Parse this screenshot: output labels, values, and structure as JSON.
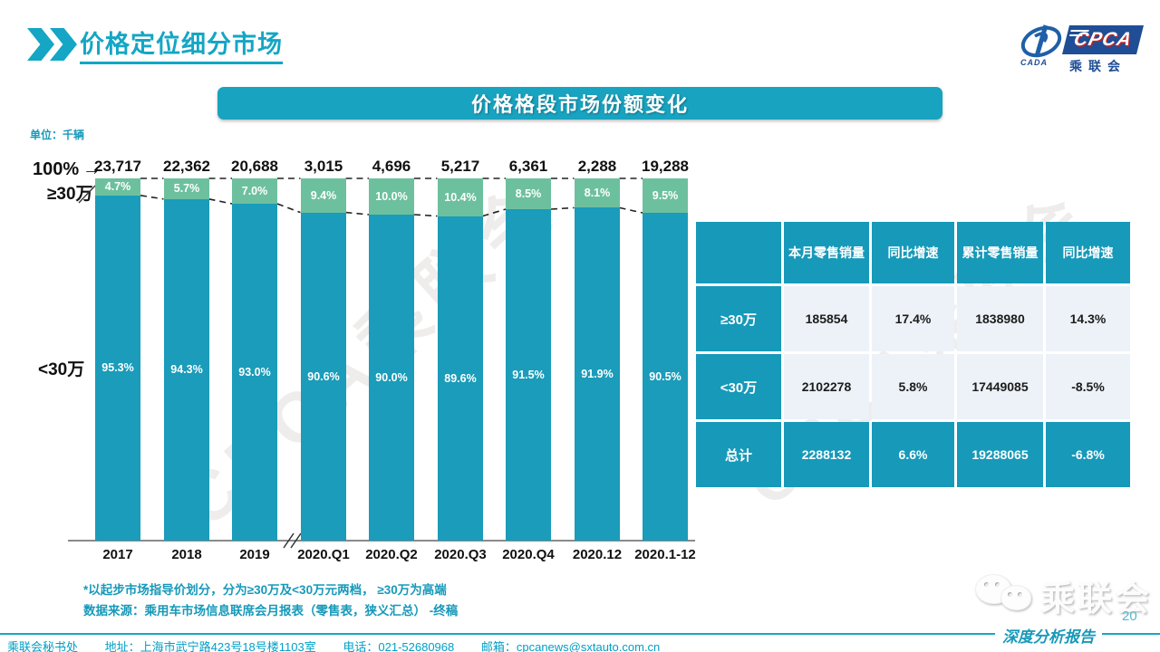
{
  "page": {
    "title": "价格定位细分市场",
    "page_number": "20",
    "report_type": "深度分析报告",
    "watermark": "CPCA乘联会"
  },
  "logo": {
    "cpca": "CPCA",
    "cada": "CADA",
    "org": "乘联会"
  },
  "banner": {
    "title": "价格格段市场份额变化"
  },
  "chart_data": {
    "type": "bar",
    "stacked": true,
    "title": "价格格段市场份额变化",
    "unit": "单位：千辆",
    "categories": [
      "2017",
      "2018",
      "2019",
      "2020.Q1",
      "2020.Q2",
      "2020.Q3",
      "2020.Q4",
      "2020.12",
      "2020.1-12"
    ],
    "totals": [
      "23,717",
      "22,362",
      "20,688",
      "3,015",
      "4,696",
      "5,217",
      "6,361",
      "2,288",
      "19,288"
    ],
    "series": [
      {
        "name": "≥30万",
        "values": [
          4.7,
          5.7,
          7.0,
          9.4,
          10.0,
          10.4,
          8.5,
          8.1,
          9.5
        ]
      },
      {
        "name": "<30万",
        "values": [
          95.3,
          94.3,
          93.0,
          90.6,
          90.0,
          89.6,
          91.5,
          91.9,
          90.5
        ]
      }
    ],
    "labels_high": [
      "4.7%",
      "5.7%",
      "7.0%",
      "9.4%",
      "10.0%",
      "10.4%",
      "8.5%",
      "8.1%",
      "9.5%"
    ],
    "labels_low": [
      "95.3%",
      "94.3%",
      "93.0%",
      "90.6%",
      "90.0%",
      "89.6%",
      "91.5%",
      "91.9%",
      "90.5%"
    ],
    "axis": {
      "hundred": "100%",
      "high_label": "≥30万",
      "low_label": "<30万",
      "ylim": [
        0,
        100
      ],
      "grid": false,
      "axis_break_after": "2019"
    },
    "colors": {
      "high": "#6dc09e",
      "low": "#1a9cba"
    }
  },
  "table": {
    "headers": [
      "",
      "本月零售销量",
      "同比增速",
      "累计零售销量",
      "同比增速"
    ],
    "rows": [
      {
        "label": "≥30万",
        "cells": [
          "185854",
          "17.4%",
          "1838980",
          "14.3%"
        ]
      },
      {
        "label": "<30万",
        "cells": [
          "2102278",
          "5.8%",
          "17449085",
          "-8.5%"
        ]
      },
      {
        "label": "总计",
        "cells": [
          "2288132",
          "6.6%",
          "19288065",
          "-6.8%"
        ]
      }
    ]
  },
  "notes": {
    "line1": "*以起步市场指导价划分，分为≥30万及<30万元两档， ≥30万为高端",
    "line2": "数据来源：乘用车市场信息联席会月报表（零售表，狭义汇总） -终稿"
  },
  "footer": {
    "org": "乘联会秘书处",
    "address": "地址：上海市武宁路423号18号楼1103室",
    "phone": "电话：021-52680968",
    "email": "邮箱：cpcanews@sxtauto.com.cn"
  },
  "wechat": {
    "label": "乘联会"
  }
}
